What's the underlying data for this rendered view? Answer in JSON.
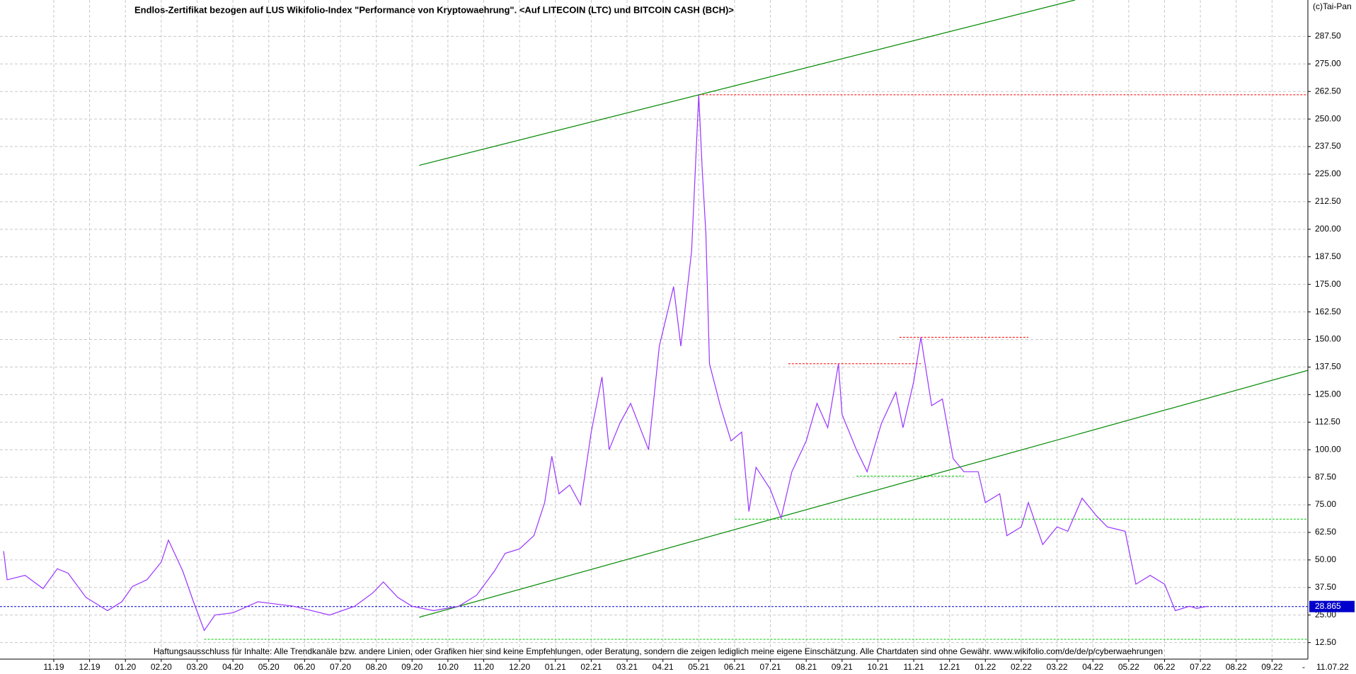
{
  "chart_data": {
    "type": "line",
    "title": "Endlos-Zertifikat bezogen auf LUS Wikifolio-Index \"Performance von Kryptowaehrung\". <Auf LITECOIN (LTC) und BITCOIN CASH (BCH)>",
    "copyright": "(c)Tai-Pan",
    "footer": "Haftungsausschluss für Inhalte: Alle Trendkanäle bzw. andere Linien, oder Grafiken hier sind keine Empfehlungen, oder Beratung, sondern die zeigen lediglich meine eigene Einschätzung. Alle Chartdaten sind ohne Gewähr.  www.wikifolio.com/de/de/p/cyberwaehrungen",
    "date_label": "11.07.22",
    "axis_end_label": "-",
    "color": "#9933ff",
    "grid": true,
    "xlim": [
      -1.5,
      35
    ],
    "ylim": [
      5,
      304
    ],
    "xticks": [
      {
        "value": 0,
        "label": "11.19"
      },
      {
        "value": 1,
        "label": "12.19"
      },
      {
        "value": 2,
        "label": "01.20"
      },
      {
        "value": 3,
        "label": "02.20"
      },
      {
        "value": 4,
        "label": "03.20"
      },
      {
        "value": 5,
        "label": "04.20"
      },
      {
        "value": 6,
        "label": "05.20"
      },
      {
        "value": 7,
        "label": "06.20"
      },
      {
        "value": 8,
        "label": "07.20"
      },
      {
        "value": 9,
        "label": "08.20"
      },
      {
        "value": 10,
        "label": "09.20"
      },
      {
        "value": 11,
        "label": "10.20"
      },
      {
        "value": 12,
        "label": "11.20"
      },
      {
        "value": 13,
        "label": "12.20"
      },
      {
        "value": 14,
        "label": "01.21"
      },
      {
        "value": 15,
        "label": "02.21"
      },
      {
        "value": 16,
        "label": "03.21"
      },
      {
        "value": 17,
        "label": "04.21"
      },
      {
        "value": 18,
        "label": "05.21"
      },
      {
        "value": 19,
        "label": "06.21"
      },
      {
        "value": 20,
        "label": "07.21"
      },
      {
        "value": 21,
        "label": "08.21"
      },
      {
        "value": 22,
        "label": "09.21"
      },
      {
        "value": 23,
        "label": "10.21"
      },
      {
        "value": 24,
        "label": "11.21"
      },
      {
        "value": 25,
        "label": "12.21"
      },
      {
        "value": 26,
        "label": "01.22"
      },
      {
        "value": 27,
        "label": "02.22"
      },
      {
        "value": 28,
        "label": "03.22"
      },
      {
        "value": 29,
        "label": "04.22"
      },
      {
        "value": 30,
        "label": "05.22"
      },
      {
        "value": 31,
        "label": "06.22"
      },
      {
        "value": 32,
        "label": "07.22"
      },
      {
        "value": 33,
        "label": "08.22"
      },
      {
        "value": 34,
        "label": "09.22"
      }
    ],
    "yticks": [
      {
        "value": 12.5,
        "label": "12.50"
      },
      {
        "value": 25,
        "label": "25.00"
      },
      {
        "value": 37.5,
        "label": "37.50"
      },
      {
        "value": 50,
        "label": "50.00"
      },
      {
        "value": 62.5,
        "label": "62.50"
      },
      {
        "value": 75,
        "label": "75.00"
      },
      {
        "value": 87.5,
        "label": "87.50"
      },
      {
        "value": 100,
        "label": "100.00"
      },
      {
        "value": 112.5,
        "label": "112.50"
      },
      {
        "value": 125,
        "label": "125.00"
      },
      {
        "value": 137.5,
        "label": "137.50"
      },
      {
        "value": 150,
        "label": "150.00"
      },
      {
        "value": 162.5,
        "label": "162.50"
      },
      {
        "value": 175,
        "label": "175.00"
      },
      {
        "value": 187.5,
        "label": "187.50"
      },
      {
        "value": 200,
        "label": "200.00"
      },
      {
        "value": 212.5,
        "label": "212.50"
      },
      {
        "value": 225,
        "label": "225.00"
      },
      {
        "value": 237.5,
        "label": "237.50"
      },
      {
        "value": 250,
        "label": "250.00"
      },
      {
        "value": 262.5,
        "label": "262.50"
      },
      {
        "value": 275,
        "label": "275.00"
      },
      {
        "value": 287.5,
        "label": "287.50"
      }
    ],
    "x": [
      -1.4,
      -1.3,
      -0.8,
      -0.3,
      0.1,
      0.4,
      0.9,
      1.5,
      1.9,
      2.2,
      2.6,
      3.0,
      3.2,
      3.6,
      3.9,
      4.2,
      4.5,
      5.0,
      5.7,
      6.7,
      7.7,
      8.4,
      8.9,
      9.2,
      9.6,
      10.0,
      10.6,
      11.3,
      11.8,
      12.3,
      12.6,
      13.0,
      13.4,
      13.7,
      13.9,
      14.1,
      14.4,
      14.7,
      15.0,
      15.3,
      15.5,
      15.8,
      16.1,
      16.6,
      16.9,
      17.3,
      17.5,
      17.8,
      18.0,
      18.1,
      18.2,
      18.3,
      18.6,
      18.9,
      19.2,
      19.4,
      19.6,
      20.0,
      20.3,
      20.6,
      21.0,
      21.3,
      21.6,
      21.9,
      22.0,
      22.4,
      22.7,
      23.1,
      23.5,
      23.7,
      24.0,
      24.2,
      24.5,
      24.8,
      25.1,
      25.4,
      25.8,
      26.0,
      26.4,
      26.6,
      27.0,
      27.2,
      27.6,
      28.0,
      28.3,
      28.7,
      29.1,
      29.4,
      29.9,
      30.2,
      30.6,
      31.0,
      31.3,
      31.7,
      31.9,
      32.2
    ],
    "values": [
      54,
      41,
      43,
      37,
      46,
      44,
      33,
      27,
      31,
      38,
      41,
      49,
      59,
      45,
      31,
      18,
      25,
      26,
      31,
      29,
      25,
      29,
      35,
      40,
      33,
      29,
      27,
      29,
      34,
      45,
      53,
      55,
      61,
      76,
      97,
      80,
      84,
      75,
      108,
      133,
      100,
      112,
      121,
      100,
      147,
      174,
      147,
      190,
      261,
      226,
      198,
      139,
      120,
      104,
      108,
      72,
      92,
      82,
      69,
      90,
      104,
      121,
      110,
      139,
      116,
      100,
      90,
      112,
      126,
      110,
      131,
      151,
      120,
      123,
      96,
      90,
      90,
      76,
      80,
      61,
      65,
      76,
      57,
      65,
      63,
      78,
      70,
      65,
      63,
      39,
      43,
      39,
      27,
      29,
      28,
      29
    ],
    "last_value": 28.865,
    "last_value_color": "#0000cc",
    "levels": [
      {
        "value": 261,
        "x": [
          18,
          35
        ],
        "color": "#ff0000"
      },
      {
        "value": 151,
        "x": [
          23.6,
          27.2
        ],
        "color": "#ff0000"
      },
      {
        "value": 139,
        "x": [
          20.5,
          24.2
        ],
        "color": "#ff0000"
      },
      {
        "value": 88,
        "x": [
          22.4,
          25.4
        ],
        "color": "#00cc00"
      },
      {
        "value": 68.5,
        "x": [
          19,
          35
        ],
        "color": "#00cc00"
      },
      {
        "value": 14,
        "x": [
          4.2,
          35
        ],
        "color": "#00cc00"
      }
    ],
    "trend_lines": [
      {
        "x": [
          10.2,
          28.5
        ],
        "values": [
          229,
          304
        ],
        "color": "#008800"
      },
      {
        "x": [
          10.2,
          35
        ],
        "values": [
          24,
          136
        ],
        "color": "#008800"
      }
    ]
  }
}
